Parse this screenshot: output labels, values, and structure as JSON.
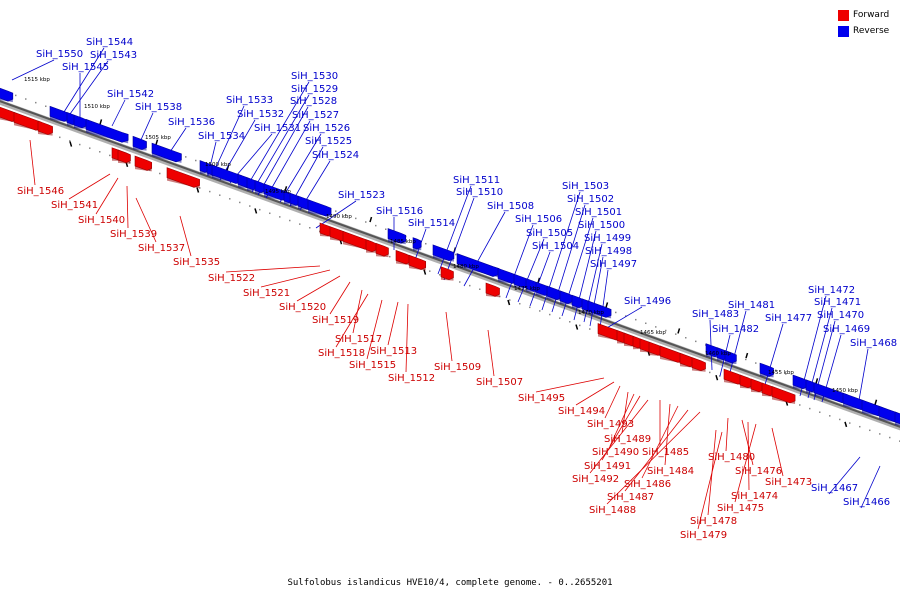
{
  "caption": "Sulfolobus islandicus HVE10/4, complete genome. - 0..2655201",
  "legend": {
    "forward": {
      "label": "Forward",
      "color": "#ee0000"
    },
    "reverse": {
      "label": "Reverse",
      "color": "#0000ee"
    }
  },
  "colors": {
    "forward_label": "#cc0000",
    "reverse_label": "#0000cc",
    "backbone": "#555555"
  },
  "scale_labels": [
    "1515 kbp",
    "1510 kbp",
    "1505 kbp",
    "1500 kbp",
    "1495 kbp",
    "1490 kbp",
    "1485 kbp",
    "1480 kbp",
    "1475 kbp",
    "1470 kbp",
    "1465 kbp",
    "1460 kbp",
    "1455 kbp",
    "1450 kbp"
  ],
  "genes": {
    "reverse": [
      "SiH_1550",
      "SiH_1544",
      "SiH_1543",
      "SiH_1545",
      "SiH_1542",
      "SiH_1538",
      "SiH_1536",
      "SiH_1534",
      "SiH_1533",
      "SiH_1532",
      "SiH_1531",
      "SiH_1530",
      "SiH_1529",
      "SiH_1528",
      "SiH_1527",
      "SiH_1526",
      "SiH_1525",
      "SiH_1524",
      "SiH_1523",
      "SiH_1516",
      "SiH_1514",
      "SiH_1511",
      "SiH_1510",
      "SiH_1508",
      "SiH_1506",
      "SiH_1505",
      "SiH_1504",
      "SiH_1503",
      "SiH_1502",
      "SiH_1501",
      "SiH_1500",
      "SiH_1499",
      "SiH_1498",
      "SiH_1497",
      "SiH_1496",
      "SiH_1483",
      "SiH_1482",
      "SiH_1481",
      "SiH_1477",
      "SiH_1472",
      "SiH_1471",
      "SiH_1470",
      "SiH_1469",
      "SiH_1468",
      "SiH_1467",
      "SiH_1466"
    ],
    "forward": [
      "SiH_1546",
      "SiH_1541",
      "SiH_1540",
      "SiH_1539",
      "SiH_1537",
      "SiH_1535",
      "SiH_1522",
      "SiH_1521",
      "SiH_1520",
      "SiH_1519",
      "SiH_1517",
      "SiH_1518",
      "SiH_1515",
      "SiH_1513",
      "SiH_1512",
      "SiH_1509",
      "SiH_1507",
      "SiH_1495",
      "SiH_1494",
      "SiH_1493",
      "SiH_1489",
      "SiH_1490",
      "SiH_1491",
      "SiH_1492",
      "SiH_1485",
      "SiH_1484",
      "SiH_1486",
      "SiH_1487",
      "SiH_1488",
      "SiH_1480",
      "SiH_1476",
      "SiH_1474",
      "SiH_1475",
      "SiH_1478",
      "SiH_1479",
      "SiH_1473"
    ]
  }
}
